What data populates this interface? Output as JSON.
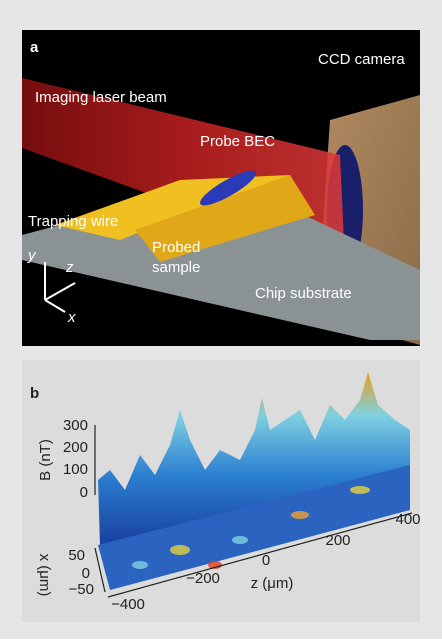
{
  "panel_a": {
    "label": "a",
    "labels": {
      "camera": "CCD camera",
      "laser": "Imaging laser beam",
      "bec": "Probe BEC",
      "wire": "Trapping wire",
      "sample": [
        "Probed",
        "sample"
      ],
      "substrate": "Chip substrate",
      "axis_y": "y",
      "axis_z": "z",
      "axis_x": "x"
    }
  },
  "panel_b": {
    "label": "b",
    "y_label": "B (nT)",
    "y_ticks": [
      "300",
      "200",
      "100",
      "0"
    ],
    "x_label": "x (μm)",
    "x_ticks": [
      "50",
      "0",
      "−50"
    ],
    "z_label": "z (μm)",
    "z_ticks": [
      "−400",
      "−200",
      "0",
      "200",
      "400"
    ]
  }
}
